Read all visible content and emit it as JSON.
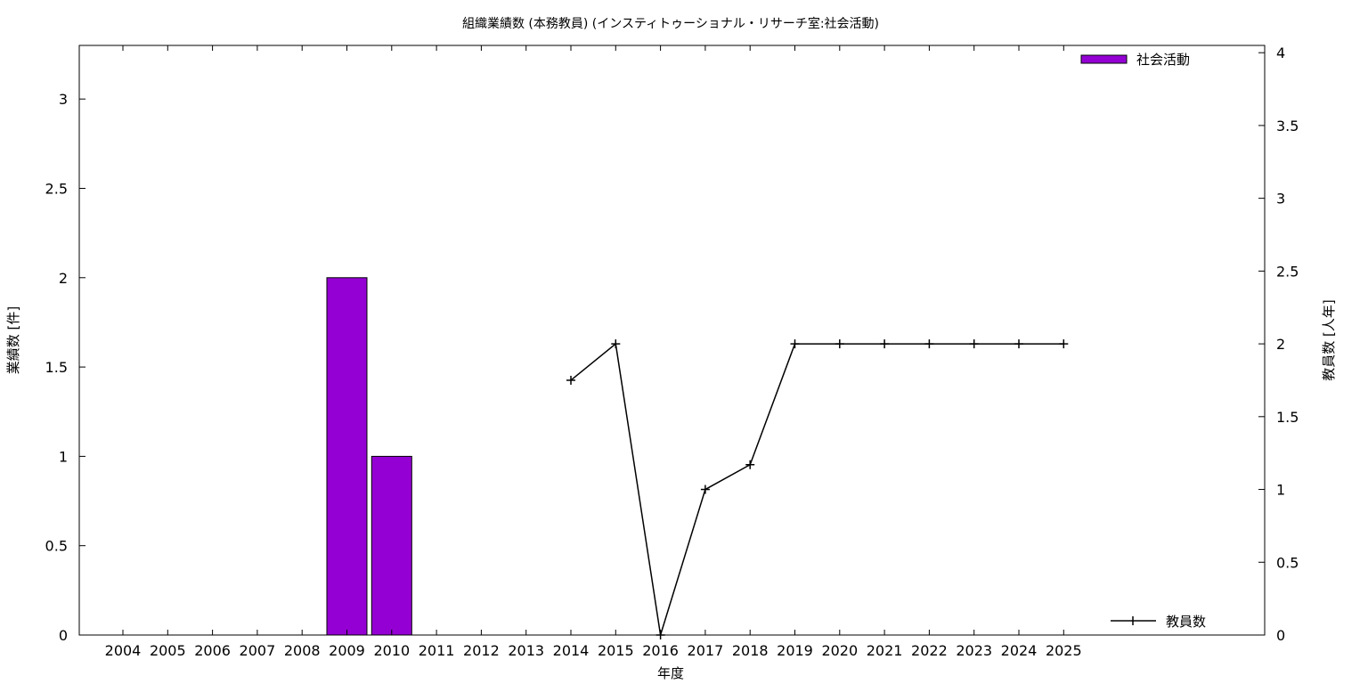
{
  "chart_data": {
    "type": "bar",
    "title": "組織業績数 (本務教員) (インスティトゥーショナル・リサーチ室:社会活動)",
    "xlabel": "年度",
    "ylabel": "業績数 [件]",
    "y2label": "教員数 [人年]",
    "categories": [
      "2004",
      "2005",
      "2006",
      "2007",
      "2008",
      "2009",
      "2010",
      "2011",
      "2012",
      "2013",
      "2014",
      "2015",
      "2016",
      "2017",
      "2018",
      "2019",
      "2020",
      "2021",
      "2022",
      "2023",
      "2024",
      "2025"
    ],
    "ylim": [
      0,
      3.3
    ],
    "y2lim": [
      0,
      4.05
    ],
    "yticks": [
      "0",
      "0.5",
      "1",
      "1.5",
      "2",
      "2.5",
      "3"
    ],
    "y2ticks": [
      "0",
      "0.5",
      "1",
      "1.5",
      "2",
      "2.5",
      "3",
      "3.5",
      "4"
    ],
    "series": [
      {
        "name": "社会活動",
        "type": "bar",
        "axis": "y",
        "color": "#9400d3",
        "values": [
          0,
          0,
          0,
          0,
          0,
          2,
          1,
          0,
          0,
          0,
          0,
          0,
          0,
          0,
          0,
          0,
          0,
          0,
          0,
          0,
          0,
          0
        ]
      },
      {
        "name": "教員数",
        "type": "line",
        "axis": "y2",
        "color": "#000000",
        "marker": "plus",
        "values": [
          null,
          null,
          null,
          null,
          null,
          null,
          null,
          null,
          null,
          null,
          1.75,
          2,
          0,
          1,
          1.17,
          2,
          2,
          2,
          2,
          2,
          2,
          2
        ]
      }
    ],
    "legend": [
      "top-right",
      "bottom-right"
    ],
    "grid": false
  }
}
